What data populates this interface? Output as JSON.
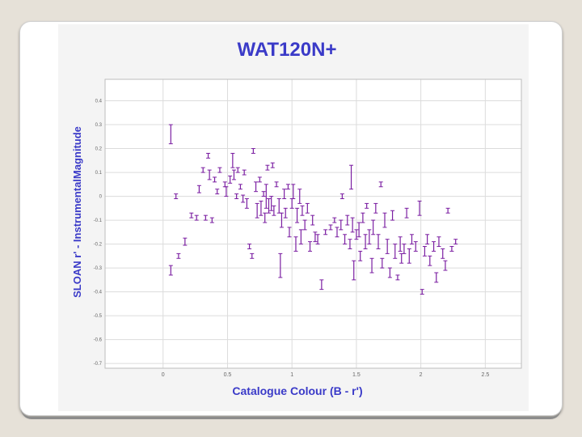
{
  "chart_data": {
    "type": "scatter",
    "title": "WAT120N+",
    "xlabel": "Catalogue Colour (B - r')",
    "ylabel": "SLOAN r' - InstrumentalMagnitude",
    "xlim": [
      -0.45,
      2.78
    ],
    "ylim": [
      -0.72,
      0.49
    ],
    "x_ticks": [
      0,
      0.5,
      1,
      1.5,
      2,
      2.5
    ],
    "x_tick_labels": [
      "0",
      "0.5",
      "1",
      "1.5",
      "2",
      "2.5"
    ],
    "y_ticks": [
      0.4,
      0.3,
      0.2,
      0.1,
      0,
      -0.1,
      -0.2,
      -0.3,
      -0.4,
      -0.5,
      -0.6,
      -0.7
    ],
    "y_tick_labels": [
      "0.4",
      "0.3",
      "0.2",
      "0.1",
      "0",
      "-0.1",
      "-0.2",
      "-0.3",
      "-0.4",
      "-0.5",
      "-0.6",
      "-0.7"
    ],
    "grid": true,
    "marker_color": "#7b1fa2",
    "series": [
      {
        "points": [
          {
            "x": 0.06,
            "y": 0.26,
            "err": 0.04
          },
          {
            "x": 0.06,
            "y": -0.31,
            "err": 0.02
          },
          {
            "x": 0.1,
            "y": 0.0,
            "err": 0.01
          },
          {
            "x": 0.12,
            "y": -0.25,
            "err": 0.01
          },
          {
            "x": 0.17,
            "y": -0.19,
            "err": 0.015
          },
          {
            "x": 0.22,
            "y": -0.08,
            "err": 0.01
          },
          {
            "x": 0.26,
            "y": -0.09,
            "err": 0.01
          },
          {
            "x": 0.28,
            "y": 0.03,
            "err": 0.015
          },
          {
            "x": 0.31,
            "y": 0.11,
            "err": 0.01
          },
          {
            "x": 0.33,
            "y": -0.09,
            "err": 0.01
          },
          {
            "x": 0.35,
            "y": 0.17,
            "err": 0.01
          },
          {
            "x": 0.36,
            "y": 0.09,
            "err": 0.02
          },
          {
            "x": 0.38,
            "y": -0.1,
            "err": 0.01
          },
          {
            "x": 0.4,
            "y": 0.07,
            "err": 0.01
          },
          {
            "x": 0.42,
            "y": 0.02,
            "err": 0.01
          },
          {
            "x": 0.44,
            "y": 0.11,
            "err": 0.01
          },
          {
            "x": 0.48,
            "y": 0.05,
            "err": 0.01
          },
          {
            "x": 0.49,
            "y": 0.02,
            "err": 0.02
          },
          {
            "x": 0.52,
            "y": 0.07,
            "err": 0.015
          },
          {
            "x": 0.54,
            "y": 0.15,
            "err": 0.03
          },
          {
            "x": 0.55,
            "y": 0.09,
            "err": 0.02
          },
          {
            "x": 0.57,
            "y": 0.0,
            "err": 0.01
          },
          {
            "x": 0.58,
            "y": 0.11,
            "err": 0.01
          },
          {
            "x": 0.6,
            "y": 0.04,
            "err": 0.01
          },
          {
            "x": 0.62,
            "y": -0.01,
            "err": 0.015
          },
          {
            "x": 0.63,
            "y": 0.1,
            "err": 0.01
          },
          {
            "x": 0.65,
            "y": -0.03,
            "err": 0.02
          },
          {
            "x": 0.67,
            "y": -0.21,
            "err": 0.01
          },
          {
            "x": 0.69,
            "y": -0.25,
            "err": 0.01
          },
          {
            "x": 0.7,
            "y": 0.19,
            "err": 0.01
          },
          {
            "x": 0.72,
            "y": 0.04,
            "err": 0.02
          },
          {
            "x": 0.73,
            "y": -0.06,
            "err": 0.03
          },
          {
            "x": 0.75,
            "y": 0.07,
            "err": 0.01
          },
          {
            "x": 0.76,
            "y": -0.05,
            "err": 0.03
          },
          {
            "x": 0.78,
            "y": 0.01,
            "err": 0.01
          },
          {
            "x": 0.79,
            "y": -0.09,
            "err": 0.02
          },
          {
            "x": 0.8,
            "y": 0.0,
            "err": 0.05
          },
          {
            "x": 0.81,
            "y": 0.12,
            "err": 0.01
          },
          {
            "x": 0.82,
            "y": -0.04,
            "err": 0.03
          },
          {
            "x": 0.84,
            "y": -0.03,
            "err": 0.03
          },
          {
            "x": 0.85,
            "y": 0.13,
            "err": 0.01
          },
          {
            "x": 0.86,
            "y": -0.06,
            "err": 0.02
          },
          {
            "x": 0.88,
            "y": 0.05,
            "err": 0.01
          },
          {
            "x": 0.9,
            "y": -0.04,
            "err": 0.03
          },
          {
            "x": 0.91,
            "y": -0.29,
            "err": 0.05
          },
          {
            "x": 0.92,
            "y": -0.1,
            "err": 0.03
          },
          {
            "x": 0.94,
            "y": 0.01,
            "err": 0.02
          },
          {
            "x": 0.95,
            "y": -0.07,
            "err": 0.02
          },
          {
            "x": 0.97,
            "y": 0.04,
            "err": 0.01
          },
          {
            "x": 0.98,
            "y": -0.15,
            "err": 0.02
          },
          {
            "x": 1.0,
            "y": -0.03,
            "err": 0.02
          },
          {
            "x": 1.01,
            "y": 0.02,
            "err": 0.03
          },
          {
            "x": 1.03,
            "y": -0.2,
            "err": 0.03
          },
          {
            "x": 1.04,
            "y": -0.08,
            "err": 0.03
          },
          {
            "x": 1.06,
            "y": 0.0,
            "err": 0.03
          },
          {
            "x": 1.07,
            "y": -0.17,
            "err": 0.03
          },
          {
            "x": 1.08,
            "y": -0.06,
            "err": 0.02
          },
          {
            "x": 1.1,
            "y": -0.12,
            "err": 0.02
          },
          {
            "x": 1.12,
            "y": -0.05,
            "err": 0.02
          },
          {
            "x": 1.14,
            "y": -0.21,
            "err": 0.02
          },
          {
            "x": 1.16,
            "y": -0.1,
            "err": 0.02
          },
          {
            "x": 1.18,
            "y": -0.17,
            "err": 0.02
          },
          {
            "x": 1.2,
            "y": -0.18,
            "err": 0.02
          },
          {
            "x": 1.23,
            "y": -0.37,
            "err": 0.02
          },
          {
            "x": 1.26,
            "y": -0.15,
            "err": 0.01
          },
          {
            "x": 1.3,
            "y": -0.13,
            "err": 0.01
          },
          {
            "x": 1.33,
            "y": -0.1,
            "err": 0.01
          },
          {
            "x": 1.35,
            "y": -0.15,
            "err": 0.02
          },
          {
            "x": 1.38,
            "y": -0.12,
            "err": 0.02
          },
          {
            "x": 1.39,
            "y": 0.0,
            "err": 0.01
          },
          {
            "x": 1.41,
            "y": -0.18,
            "err": 0.02
          },
          {
            "x": 1.43,
            "y": -0.1,
            "err": 0.02
          },
          {
            "x": 1.45,
            "y": -0.2,
            "err": 0.02
          },
          {
            "x": 1.46,
            "y": 0.08,
            "err": 0.05
          },
          {
            "x": 1.47,
            "y": -0.12,
            "err": 0.03
          },
          {
            "x": 1.48,
            "y": -0.31,
            "err": 0.04
          },
          {
            "x": 1.5,
            "y": -0.16,
            "err": 0.02
          },
          {
            "x": 1.52,
            "y": -0.14,
            "err": 0.03
          },
          {
            "x": 1.53,
            "y": -0.25,
            "err": 0.02
          },
          {
            "x": 1.55,
            "y": -0.09,
            "err": 0.02
          },
          {
            "x": 1.57,
            "y": -0.19,
            "err": 0.03
          },
          {
            "x": 1.58,
            "y": -0.04,
            "err": 0.01
          },
          {
            "x": 1.6,
            "y": -0.17,
            "err": 0.03
          },
          {
            "x": 1.62,
            "y": -0.29,
            "err": 0.03
          },
          {
            "x": 1.63,
            "y": -0.13,
            "err": 0.03
          },
          {
            "x": 1.65,
            "y": -0.05,
            "err": 0.02
          },
          {
            "x": 1.67,
            "y": -0.19,
            "err": 0.03
          },
          {
            "x": 1.69,
            "y": 0.05,
            "err": 0.01
          },
          {
            "x": 1.7,
            "y": -0.28,
            "err": 0.02
          },
          {
            "x": 1.72,
            "y": -0.1,
            "err": 0.03
          },
          {
            "x": 1.74,
            "y": -0.21,
            "err": 0.03
          },
          {
            "x": 1.76,
            "y": -0.32,
            "err": 0.02
          },
          {
            "x": 1.78,
            "y": -0.08,
            "err": 0.02
          },
          {
            "x": 1.8,
            "y": -0.23,
            "err": 0.03
          },
          {
            "x": 1.82,
            "y": -0.34,
            "err": 0.01
          },
          {
            "x": 1.84,
            "y": -0.2,
            "err": 0.03
          },
          {
            "x": 1.85,
            "y": -0.26,
            "err": 0.02
          },
          {
            "x": 1.87,
            "y": -0.22,
            "err": 0.02
          },
          {
            "x": 1.89,
            "y": -0.07,
            "err": 0.02
          },
          {
            "x": 1.91,
            "y": -0.25,
            "err": 0.03
          },
          {
            "x": 1.93,
            "y": -0.18,
            "err": 0.02
          },
          {
            "x": 1.96,
            "y": -0.21,
            "err": 0.02
          },
          {
            "x": 1.99,
            "y": -0.05,
            "err": 0.03
          },
          {
            "x": 2.01,
            "y": -0.4,
            "err": 0.01
          },
          {
            "x": 2.03,
            "y": -0.23,
            "err": 0.02
          },
          {
            "x": 2.05,
            "y": -0.18,
            "err": 0.02
          },
          {
            "x": 2.07,
            "y": -0.27,
            "err": 0.02
          },
          {
            "x": 2.1,
            "y": -0.21,
            "err": 0.02
          },
          {
            "x": 2.12,
            "y": -0.34,
            "err": 0.02
          },
          {
            "x": 2.14,
            "y": -0.19,
            "err": 0.02
          },
          {
            "x": 2.17,
            "y": -0.24,
            "err": 0.02
          },
          {
            "x": 2.19,
            "y": -0.29,
            "err": 0.02
          },
          {
            "x": 2.21,
            "y": -0.06,
            "err": 0.01
          },
          {
            "x": 2.24,
            "y": -0.22,
            "err": 0.01
          },
          {
            "x": 2.27,
            "y": -0.19,
            "err": 0.01
          }
        ]
      }
    ]
  }
}
